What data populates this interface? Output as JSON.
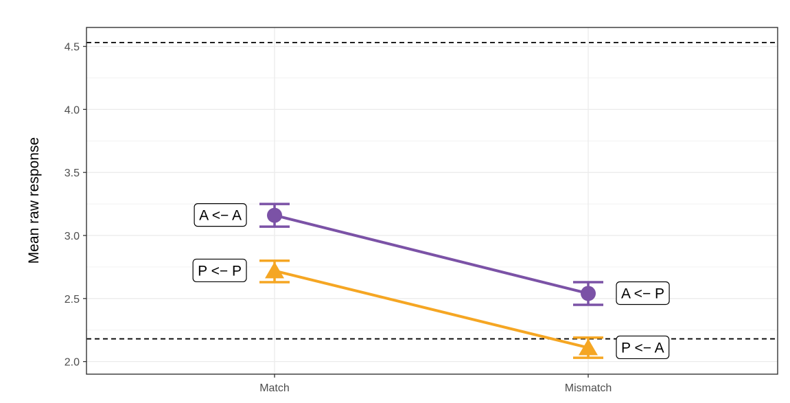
{
  "chart_data": {
    "type": "line",
    "title": "",
    "xlabel": "",
    "ylabel": "Mean raw response",
    "categories": [
      "Match",
      "Mismatch"
    ],
    "ylim": [
      1.9,
      4.65
    ],
    "yticks": [
      2.0,
      2.5,
      3.0,
      3.5,
      4.0,
      4.5
    ],
    "ytick_labels": [
      "2.0",
      "2.5",
      "3.0",
      "3.5",
      "4.0",
      "4.5"
    ],
    "grid": true,
    "legend": "none",
    "reference_lines": [
      4.53,
      2.18
    ],
    "series": [
      {
        "key": "purple",
        "color": "#7b52a6",
        "marker": "circle",
        "values": [
          3.16,
          2.54
        ],
        "error_low": [
          3.07,
          2.45
        ],
        "error_high": [
          3.25,
          2.63
        ],
        "point_labels": [
          "A <− A",
          "A <− P"
        ]
      },
      {
        "key": "orange",
        "color": "#f5a623",
        "marker": "triangle",
        "values": [
          2.72,
          2.11
        ],
        "error_low": [
          2.63,
          2.03
        ],
        "error_high": [
          2.8,
          2.19
        ],
        "point_labels": [
          "P <− P",
          "P <− A"
        ]
      }
    ]
  }
}
